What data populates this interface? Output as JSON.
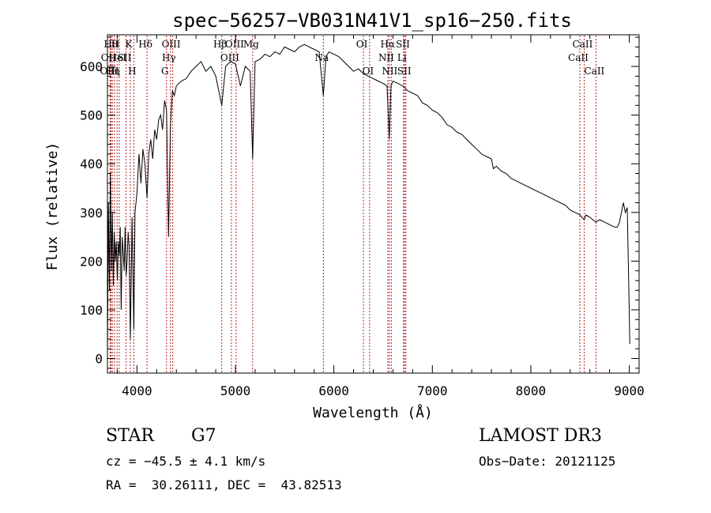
{
  "chart_data": {
    "type": "line",
    "title": "spec−56257−VB031N41V1_sp16−250.fits",
    "xlabel": "Wavelength (Å)",
    "ylabel": "Flux (relative)",
    "xlim": [
      3700,
      9100
    ],
    "ylim": [
      -30,
      665
    ],
    "grid": false,
    "x_ticks": [
      4000,
      5000,
      6000,
      7000,
      8000,
      9000
    ],
    "x_tick_labels": [
      "4000",
      "5000",
      "6000",
      "7000",
      "8000",
      "9000"
    ],
    "y_ticks": [
      0,
      100,
      200,
      300,
      400,
      500,
      600
    ],
    "y_tick_labels": [
      "0",
      "100",
      "200",
      "300",
      "400",
      "500",
      "600"
    ],
    "series": [
      {
        "name": "flux",
        "color": "#000000",
        "x": [
          3700,
          3710,
          3720,
          3730,
          3740,
          3750,
          3760,
          3770,
          3780,
          3790,
          3800,
          3810,
          3820,
          3830,
          3840,
          3850,
          3860,
          3870,
          3880,
          3890,
          3900,
          3910,
          3920,
          3933,
          3950,
          3968,
          3980,
          4000,
          4020,
          4040,
          4060,
          4080,
          4102,
          4120,
          4140,
          4160,
          4180,
          4200,
          4220,
          4240,
          4260,
          4280,
          4300,
          4320,
          4340,
          4360,
          4380,
          4400,
          4450,
          4500,
          4550,
          4600,
          4650,
          4700,
          4750,
          4800,
          4861,
          4900,
          4950,
          5000,
          5050,
          5100,
          5150,
          5175,
          5200,
          5250,
          5300,
          5350,
          5400,
          5450,
          5500,
          5550,
          5600,
          5650,
          5700,
          5750,
          5800,
          5850,
          5893,
          5920,
          5950,
          6000,
          6050,
          6100,
          6150,
          6200,
          6250,
          6300,
          6350,
          6400,
          6450,
          6500,
          6540,
          6563,
          6580,
          6600,
          6650,
          6700,
          6750,
          6800,
          6850,
          6900,
          6950,
          7000,
          7050,
          7100,
          7150,
          7200,
          7250,
          7300,
          7350,
          7400,
          7450,
          7500,
          7550,
          7600,
          7620,
          7650,
          7700,
          7750,
          7800,
          7850,
          7900,
          7950,
          8000,
          8050,
          8100,
          8150,
          8200,
          8250,
          8300,
          8350,
          8400,
          8450,
          8500,
          8542,
          8560,
          8600,
          8662,
          8700,
          8750,
          8800,
          8850,
          8880,
          8900,
          8920,
          8940,
          8960,
          8980,
          9000,
          9005
        ],
        "values": [
          0,
          320,
          140,
          380,
          180,
          300,
          150,
          260,
          200,
          240,
          160,
          240,
          210,
          270,
          100,
          250,
          220,
          180,
          270,
          170,
          200,
          260,
          230,
          40,
          290,
          60,
          300,
          340,
          420,
          360,
          430,
          400,
          330,
          420,
          450,
          410,
          470,
          450,
          490,
          500,
          470,
          530,
          510,
          250,
          480,
          550,
          540,
          560,
          570,
          575,
          590,
          600,
          610,
          590,
          600,
          580,
          520,
          600,
          610,
          605,
          560,
          600,
          590,
          410,
          610,
          615,
          625,
          620,
          630,
          625,
          640,
          635,
          630,
          640,
          645,
          640,
          635,
          630,
          540,
          620,
          630,
          625,
          620,
          610,
          600,
          590,
          595,
          585,
          580,
          575,
          570,
          565,
          560,
          450,
          560,
          570,
          565,
          560,
          550,
          545,
          540,
          525,
          520,
          510,
          505,
          495,
          480,
          475,
          465,
          460,
          450,
          440,
          430,
          420,
          415,
          410,
          390,
          395,
          385,
          380,
          370,
          365,
          360,
          355,
          350,
          345,
          340,
          335,
          330,
          325,
          320,
          315,
          305,
          300,
          295,
          285,
          295,
          290,
          280,
          285,
          280,
          275,
          270,
          270,
          280,
          300,
          320,
          300,
          310,
          100,
          30
        ]
      }
    ],
    "line_labels": [
      {
        "wavelength": 3750,
        "label": "Hθ",
        "row": 0
      },
      {
        "wavelength": 3727,
        "label": "OII",
        "row": 1
      },
      {
        "wavelength": 3736,
        "label": "OIII",
        "row": 2
      },
      {
        "wavelength": 3771,
        "label": "Hη",
        "row": 2
      },
      {
        "wavelength": 3798,
        "label": "H",
        "row": 0
      },
      {
        "wavelength": 3820,
        "label": "HeI",
        "row": 1
      },
      {
        "wavelength": 3889,
        "label": "SII",
        "row": 1
      },
      {
        "wavelength": 3933,
        "label": "K",
        "row": 0
      },
      {
        "wavelength": 3968,
        "label": "H",
        "row": 2
      },
      {
        "wavelength": 4102,
        "label": "Hδ",
        "row": 0
      },
      {
        "wavelength": 4300,
        "label": "G",
        "row": 2
      },
      {
        "wavelength": 4340,
        "label": "Hγ",
        "row": 1
      },
      {
        "wavelength": 4363,
        "label": "OIII",
        "row": 0
      },
      {
        "wavelength": 4861,
        "label": "Hβ",
        "row": 0
      },
      {
        "wavelength": 4959,
        "label": "OIII",
        "row": 1
      },
      {
        "wavelength": 5007,
        "label": "OIII",
        "row": 0
      },
      {
        "wavelength": 5175,
        "label": "Mg",
        "row": 0
      },
      {
        "wavelength": 5893,
        "label": "Na",
        "row": 1
      },
      {
        "wavelength": 6300,
        "label": "OI",
        "row": 0
      },
      {
        "wavelength": 6363,
        "label": "OI",
        "row": 2
      },
      {
        "wavelength": 6548,
        "label": "NII",
        "row": 1
      },
      {
        "wavelength": 6563,
        "label": "Hα",
        "row": 0
      },
      {
        "wavelength": 6583,
        "label": "NII",
        "row": 2
      },
      {
        "wavelength": 6707,
        "label": "Li",
        "row": 1
      },
      {
        "wavelength": 6717,
        "label": "SII",
        "row": 0
      },
      {
        "wavelength": 6731,
        "label": "SII",
        "row": 2
      },
      {
        "wavelength": 8498,
        "label": "CaII",
        "row": 1
      },
      {
        "wavelength": 8542,
        "label": "CaII",
        "row": 0
      },
      {
        "wavelength": 8662,
        "label": "CaII",
        "row": 2
      }
    ],
    "line_color": "#b22222"
  },
  "info": {
    "object_class": "STAR",
    "subclass": "G7",
    "survey": "LAMOST DR3",
    "cz": "cz = −45.5 ± 4.1 km/s",
    "obs_date": "Obs−Date: 20121125",
    "coords": "RA =  30.26111, DEC =  43.82513"
  }
}
